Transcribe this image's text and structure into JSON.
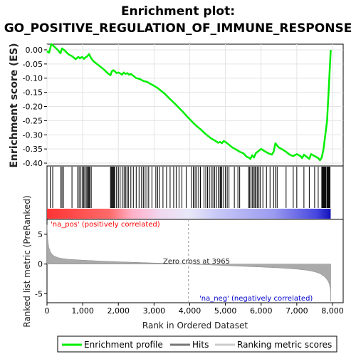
{
  "title_line1": "Enrichment plot:",
  "title_line2": "GO_POSITIVE_REGULATION_OF_IMMUNE_RESPONSE",
  "colors": {
    "enrichment": "#00ee00",
    "hits": "#000000",
    "positive": "#ff0000",
    "negative": "#0000ff",
    "metric_fill": "#aaaaaa",
    "pos_label": "#ff0000",
    "neg_label": "#0000cc"
  },
  "legend": {
    "items": [
      {
        "label": "Enrichment profile",
        "color": "#00ee00"
      },
      {
        "label": "Hits",
        "color": "#777777"
      },
      {
        "label": "Ranking metric scores",
        "color": "#cccccc"
      }
    ]
  },
  "chart_data": [
    {
      "type": "line",
      "name": "enrichment",
      "ylabel": "Enrichment score (ES)",
      "xlim": [
        0,
        8300
      ],
      "ylim": [
        -0.41,
        0.02
      ],
      "yticks": [
        0.0,
        -0.05,
        -0.1,
        -0.15,
        -0.2,
        -0.25,
        -0.3,
        -0.35,
        -0.4
      ],
      "ytick_labels": [
        "0.00",
        "-0.05",
        "-0.10",
        "-0.15",
        "-0.20",
        "-0.25",
        "-0.30",
        "-0.35",
        "-0.40"
      ],
      "grid": true,
      "x": [
        0,
        60,
        120,
        200,
        300,
        380,
        420,
        500,
        600,
        700,
        800,
        880,
        920,
        980,
        1040,
        1080,
        1120,
        1180,
        1240,
        1300,
        1400,
        1500,
        1600,
        1700,
        1780,
        1820,
        1860,
        1900,
        1950,
        2000,
        2050,
        2100,
        2150,
        2200,
        2250,
        2300,
        2350,
        2400,
        2450,
        2500,
        2600,
        2700,
        2800,
        2900,
        3000,
        3100,
        3200,
        3300,
        3400,
        3500,
        3600,
        3700,
        3800,
        3900,
        4000,
        4100,
        4200,
        4300,
        4400,
        4500,
        4600,
        4700,
        4800,
        4850,
        4900,
        4950,
        5000,
        5100,
        5200,
        5300,
        5400,
        5500,
        5600,
        5650,
        5700,
        5750,
        5800,
        5850,
        5900,
        5950,
        6000,
        6100,
        6200,
        6300,
        6350,
        6400,
        6450,
        6500,
        6600,
        6700,
        6800,
        6900,
        7000,
        7100,
        7150,
        7200,
        7300,
        7350,
        7400,
        7500,
        7600,
        7650,
        7700,
        7750,
        7780,
        7820,
        7850,
        7870,
        7890,
        7910,
        7930,
        7950
      ],
      "y": [
        -0.005,
        -0.01,
        0.02,
        0.012,
        0.0,
        -0.012,
        0.005,
        -0.003,
        -0.016,
        -0.022,
        -0.033,
        -0.025,
        -0.03,
        -0.025,
        -0.032,
        -0.026,
        -0.024,
        -0.015,
        -0.03,
        -0.04,
        -0.05,
        -0.06,
        -0.07,
        -0.082,
        -0.09,
        -0.075,
        -0.072,
        -0.076,
        -0.082,
        -0.08,
        -0.083,
        -0.088,
        -0.08,
        -0.085,
        -0.082,
        -0.088,
        -0.085,
        -0.09,
        -0.095,
        -0.1,
        -0.103,
        -0.11,
        -0.113,
        -0.12,
        -0.127,
        -0.135,
        -0.145,
        -0.155,
        -0.168,
        -0.18,
        -0.192,
        -0.205,
        -0.218,
        -0.232,
        -0.245,
        -0.258,
        -0.27,
        -0.28,
        -0.292,
        -0.303,
        -0.313,
        -0.32,
        -0.328,
        -0.325,
        -0.33,
        -0.322,
        -0.325,
        -0.335,
        -0.345,
        -0.352,
        -0.36,
        -0.365,
        -0.378,
        -0.38,
        -0.385,
        -0.372,
        -0.38,
        -0.365,
        -0.36,
        -0.355,
        -0.35,
        -0.358,
        -0.365,
        -0.37,
        -0.36,
        -0.33,
        -0.338,
        -0.345,
        -0.352,
        -0.36,
        -0.37,
        -0.375,
        -0.368,
        -0.375,
        -0.382,
        -0.37,
        -0.38,
        -0.385,
        -0.368,
        -0.375,
        -0.382,
        -0.39,
        -0.38,
        -0.35,
        -0.32,
        -0.28,
        -0.25,
        -0.2,
        -0.15,
        -0.1,
        -0.05,
        0.0
      ]
    },
    {
      "type": "hits",
      "name": "hits",
      "x": [
        90,
        160,
        390,
        420,
        460,
        700,
        860,
        900,
        950,
        990,
        1030,
        1060,
        1100,
        1130,
        1160,
        1180,
        1200,
        1240,
        1780,
        1800,
        1820,
        1840,
        1860,
        1880,
        1900,
        1950,
        2000,
        2050,
        2110,
        2160,
        2200,
        2240,
        2280,
        2350,
        2420,
        2500,
        2580,
        2650,
        2700,
        2750,
        2800,
        2850,
        2940,
        3050,
        3100,
        3150,
        3250,
        3350,
        3450,
        3550,
        3620,
        3700,
        3780,
        3900,
        4050,
        4100,
        4150,
        4200,
        4250,
        4300,
        4400,
        4450,
        4500,
        4550,
        4600,
        4650,
        4700,
        4750,
        4800,
        4850,
        4870,
        4900,
        4950,
        5000,
        5050,
        5100,
        5250,
        5350,
        5400,
        5650,
        5680,
        5720,
        5760,
        5800,
        5830,
        5860,
        5900,
        5940,
        5980,
        6050,
        6150,
        6250,
        6350,
        6400,
        6450,
        6700,
        6900,
        7000,
        7200,
        7350,
        7500,
        7600,
        7700,
        7720,
        7740,
        7760,
        7780,
        7800,
        7820,
        7850,
        7870,
        7890,
        7910,
        7930
      ]
    },
    {
      "type": "area",
      "name": "ranked list metric",
      "ylabel": "Ranked list metric (PreRanked)",
      "xlabel": "Rank in Ordered Dataset",
      "xlim": [
        0,
        8300
      ],
      "ylim": [
        -6.5,
        7.5
      ],
      "yticks": [
        5,
        0,
        -5
      ],
      "ytick_labels": [
        "5",
        "0",
        "-5"
      ],
      "xticks": [
        0,
        1000,
        2000,
        3000,
        4000,
        5000,
        6000,
        7000,
        8000
      ],
      "xtick_labels": [
        "0",
        "1,000",
        "2,000",
        "3,000",
        "4,000",
        "5,000",
        "6,000",
        "7,000",
        "8,000"
      ],
      "x": [
        0,
        20,
        50,
        100,
        150,
        200,
        300,
        400,
        600,
        1000,
        1500,
        2000,
        2500,
        3000,
        3500,
        3965,
        4500,
        5000,
        5500,
        6000,
        6500,
        7000,
        7300,
        7500,
        7650,
        7750,
        7820,
        7870,
        7900,
        7920,
        7940,
        7950
      ],
      "y": [
        6.6,
        4.2,
        2.8,
        2.0,
        1.6,
        1.35,
        1.1,
        0.95,
        0.8,
        0.65,
        0.5,
        0.38,
        0.28,
        0.18,
        0.09,
        0.0,
        -0.12,
        -0.25,
        -0.38,
        -0.5,
        -0.65,
        -0.85,
        -1.05,
        -1.3,
        -1.6,
        -2.0,
        -2.4,
        -2.8,
        -3.2,
        -3.6,
        -4.3,
        -6.3
      ],
      "zero_cross": 3965,
      "zero_cross_label": "Zero cross at 3965",
      "pos_label": "'na_pos' (positively correlated)",
      "neg_label": "'na_neg' (negatively correlated)"
    }
  ]
}
